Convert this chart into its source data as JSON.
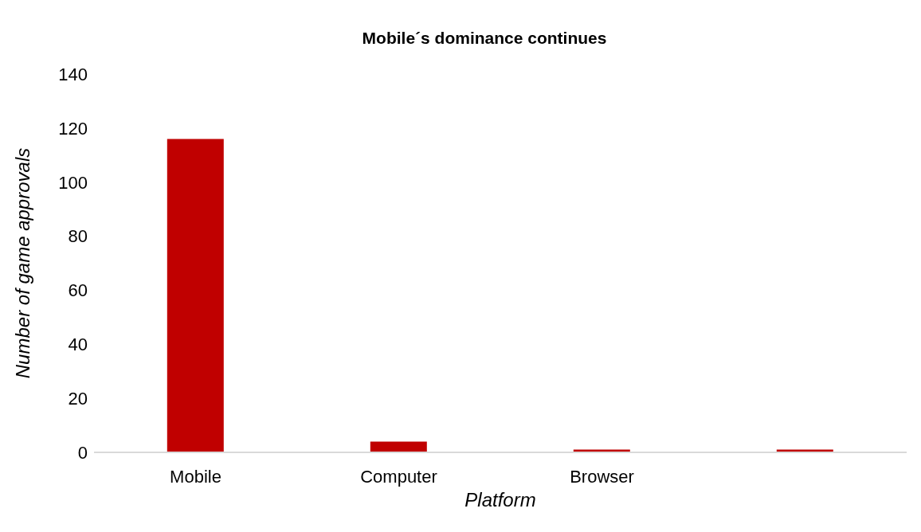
{
  "chart_data": {
    "type": "bar",
    "title": "Mobile´s dominance continues",
    "xlabel": "Platform",
    "ylabel": "Number of game approvals",
    "categories": [
      "Mobile",
      "Computer",
      "Browser",
      null
    ],
    "values": [
      116,
      4,
      1,
      1
    ],
    "color": "#c00000",
    "ylim": [
      0,
      140
    ],
    "yticks": [
      0,
      20,
      40,
      60,
      80,
      100,
      120,
      140
    ],
    "grid": false,
    "legend": false
  }
}
